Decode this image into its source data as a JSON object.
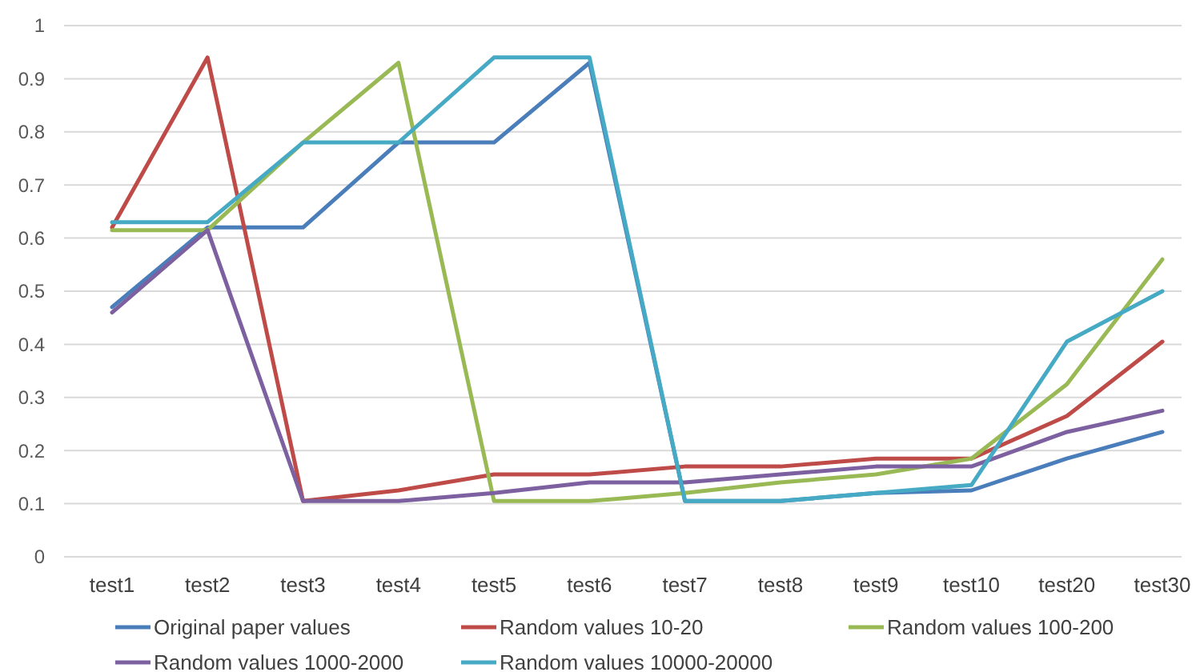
{
  "chart_data": {
    "type": "line",
    "categories": [
      "test1",
      "test2",
      "test3",
      "test4",
      "test5",
      "test6",
      "test7",
      "test8",
      "test9",
      "test10",
      "test20",
      "test30"
    ],
    "series": [
      {
        "name": "Original paper values",
        "color": "#4a7ebb",
        "values": [
          0.47,
          0.62,
          0.62,
          0.78,
          0.78,
          0.93,
          0.105,
          0.105,
          0.12,
          0.125,
          0.185,
          0.235
        ]
      },
      {
        "name": "Random values 10-20",
        "color": "#be4b48",
        "values": [
          0.62,
          0.94,
          0.105,
          0.125,
          0.155,
          0.155,
          0.17,
          0.17,
          0.185,
          0.185,
          0.265,
          0.405
        ]
      },
      {
        "name": "Random values 100-200",
        "color": "#98b954",
        "values": [
          0.615,
          0.615,
          0.78,
          0.93,
          0.105,
          0.105,
          0.12,
          0.14,
          0.155,
          0.185,
          0.325,
          0.56
        ]
      },
      {
        "name": "Random values 1000-2000",
        "color": "#7d60a0",
        "values": [
          0.46,
          0.615,
          0.105,
          0.105,
          0.12,
          0.14,
          0.14,
          0.155,
          0.17,
          0.17,
          0.235,
          0.275
        ]
      },
      {
        "name": "Random values 10000-20000",
        "color": "#46aac5",
        "values": [
          0.63,
          0.63,
          0.78,
          0.78,
          0.94,
          0.94,
          0.105,
          0.105,
          0.12,
          0.135,
          0.405,
          0.5
        ]
      }
    ],
    "ylim": [
      0,
      1
    ],
    "yticks": [
      0,
      0.1,
      0.2,
      0.3,
      0.4,
      0.5,
      0.6,
      0.7,
      0.8,
      0.9,
      1
    ],
    "grid": "y",
    "legend": "bottom",
    "marker": "none",
    "line_style": "solid"
  }
}
